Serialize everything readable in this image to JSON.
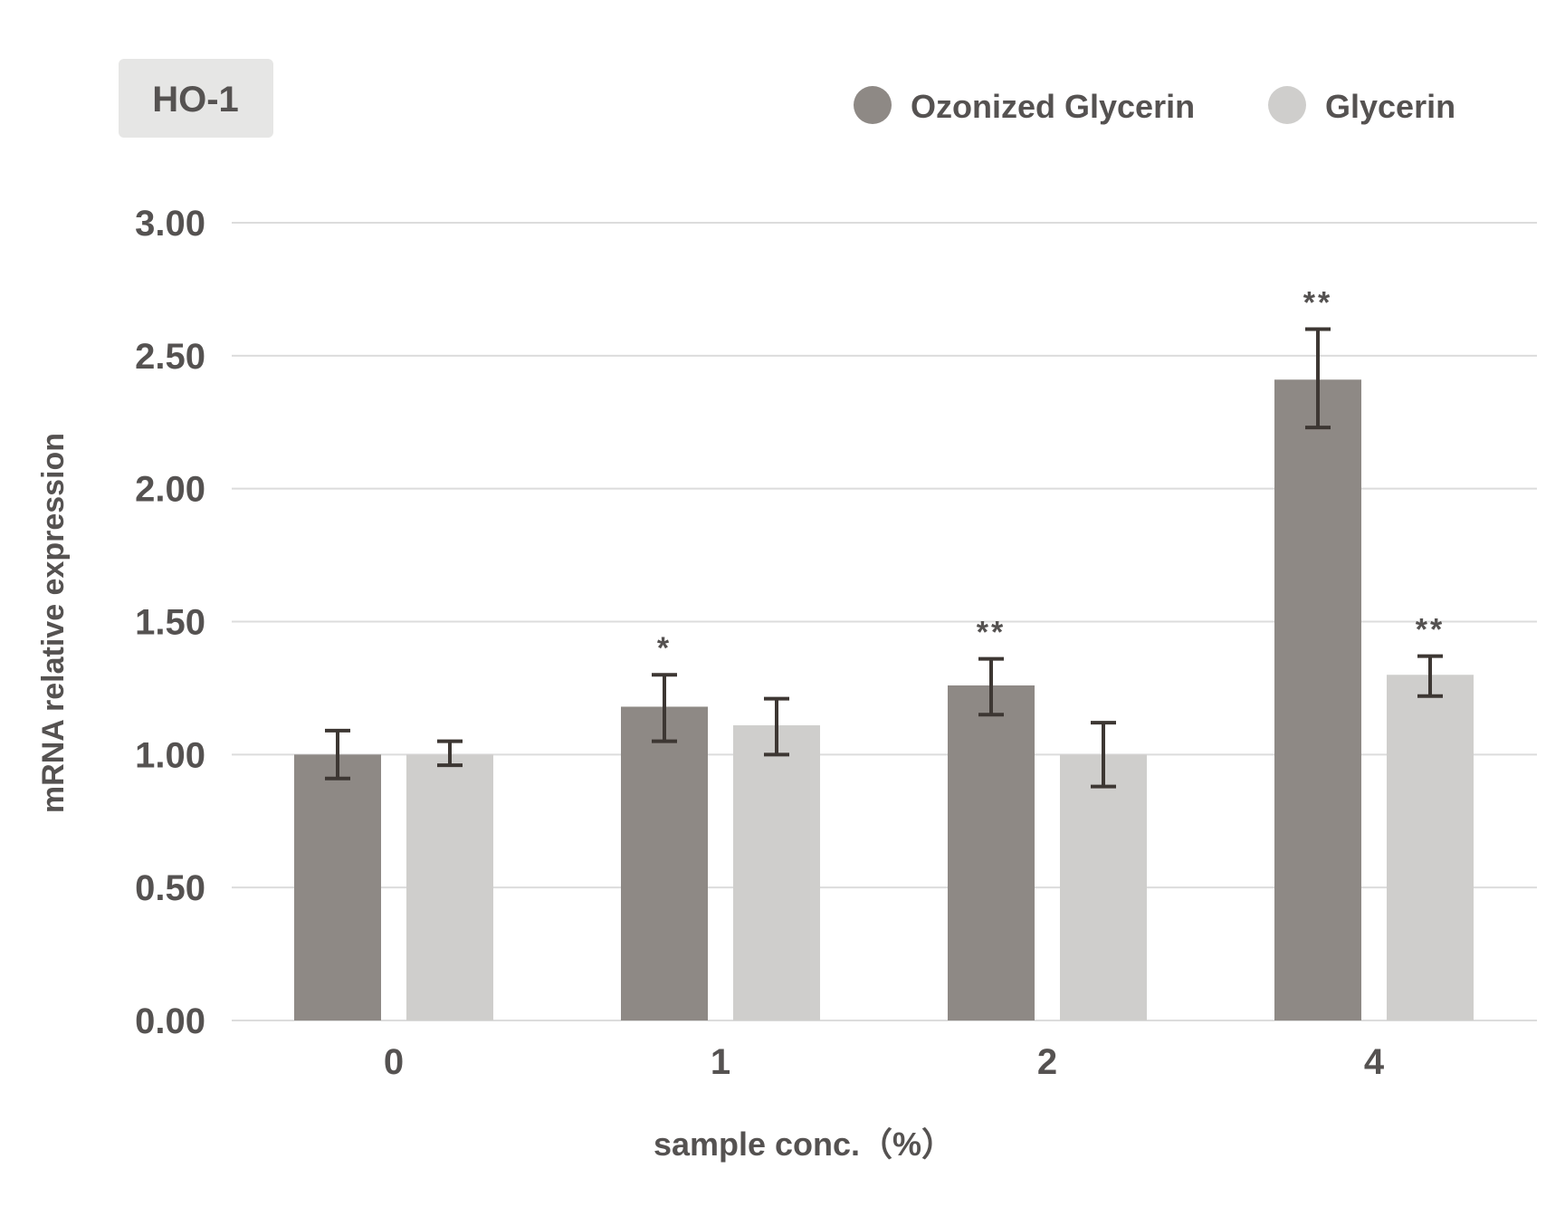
{
  "chart_data": {
    "type": "bar",
    "title": "HO-1",
    "xlabel": "sample conc.（%）",
    "ylabel": "mRNA relative expression",
    "categories": [
      "0",
      "1",
      "2",
      "4"
    ],
    "ylim": [
      0,
      3.0
    ],
    "yticks": [
      "0.00",
      "0.50",
      "1.00",
      "1.50",
      "2.00",
      "2.50",
      "3.00"
    ],
    "ytick_values": [
      0,
      0.5,
      1.0,
      1.5,
      2.0,
      2.5,
      3.0
    ],
    "grid": true,
    "legend_position": "top-right",
    "series": [
      {
        "name": "Ozonized Glycerin",
        "color": "#8e8985",
        "values": [
          1.0,
          1.18,
          1.26,
          2.41
        ],
        "error_low": [
          0.91,
          1.05,
          1.15,
          2.23
        ],
        "error_high": [
          1.09,
          1.3,
          1.36,
          2.6
        ],
        "significance": [
          "",
          "*",
          "**",
          "**"
        ]
      },
      {
        "name": "Glycerin",
        "color": "#cfcecc",
        "values": [
          1.0,
          1.11,
          1.0,
          1.3
        ],
        "error_low": [
          0.96,
          1.0,
          0.88,
          1.22
        ],
        "error_high": [
          1.05,
          1.21,
          1.12,
          1.37
        ],
        "significance": [
          "",
          "",
          "",
          "**"
        ]
      }
    ]
  },
  "colors": {
    "text": "#555251",
    "grid": "#dcdcdc",
    "error_bar": "#3d3733",
    "title_box": "#e6e6e5"
  }
}
